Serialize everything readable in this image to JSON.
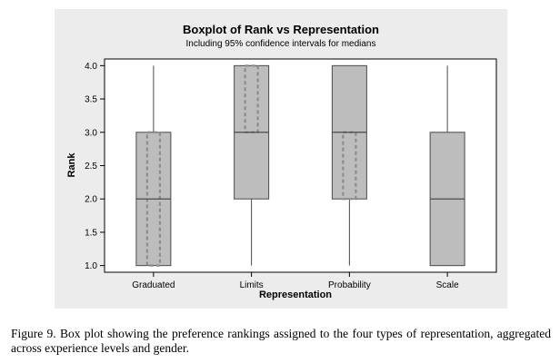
{
  "chart_data": {
    "type": "boxplot",
    "title": "Boxplot of Rank vs Representation",
    "subtitle": "Including 95% confidence intervals for medians",
    "xlabel": "Representation",
    "ylabel": "Rank",
    "ylim": [
      0.9,
      4.1
    ],
    "yticks": [
      1.0,
      1.5,
      2.0,
      2.5,
      3.0,
      3.5,
      4.0
    ],
    "ytick_labels": [
      "1.0",
      "1.5",
      "2.0",
      "2.5",
      "3.0",
      "3.5",
      "4.0"
    ],
    "grid": false,
    "categories": [
      "Graduated",
      "Limits",
      "Probability",
      "Scale"
    ],
    "boxes": [
      {
        "category": "Graduated",
        "whisker_low": 1,
        "q1": 1,
        "median": 2,
        "q3": 3,
        "whisker_high": 4,
        "ci_low": 1,
        "ci_high": 3
      },
      {
        "category": "Limits",
        "whisker_low": 1,
        "q1": 2,
        "median": 3,
        "q3": 4,
        "whisker_high": 4,
        "ci_low": 3,
        "ci_high": 4
      },
      {
        "category": "Probability",
        "whisker_low": 1,
        "q1": 2,
        "median": 3,
        "q3": 4,
        "whisker_high": 4,
        "ci_low": 2,
        "ci_high": 3
      },
      {
        "category": "Scale",
        "whisker_low": 1,
        "q1": 1,
        "median": 2,
        "q3": 3,
        "whisker_high": 4,
        "ci_low": 2,
        "ci_high": 2
      }
    ],
    "colors": {
      "panel_background": "#ececec",
      "plot_background": "#ffffff",
      "box_fill": "#bdbdbd",
      "box_stroke": "#4a4a4a",
      "ci_stroke": "#8c8c8c"
    }
  },
  "caption": "Figure 9.  Box plot showing the preference rankings assigned to the four types of representation, aggregated across experience levels and gender."
}
